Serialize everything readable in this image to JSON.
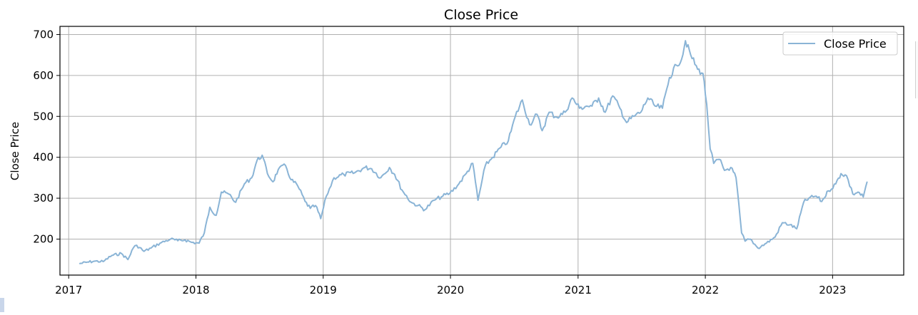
{
  "chart_data": {
    "type": "line",
    "title": "Close Price",
    "xlabel": "",
    "ylabel": "Close Price",
    "x_ticks": [
      "2017",
      "2018",
      "2019",
      "2020",
      "2021",
      "2022",
      "2023"
    ],
    "y_ticks": [
      200,
      300,
      400,
      500,
      600,
      700
    ],
    "xlim": [
      "2016-12-07",
      "2023-07-24"
    ],
    "ylim": [
      112,
      720
    ],
    "grid": true,
    "legend_position": "top-right",
    "series_color": "#8ab4d6",
    "series": [
      {
        "name": "Close Price",
        "x": [
          "2017-02-01",
          "2017-02-20",
          "2017-03-15",
          "2017-04-10",
          "2017-05-05",
          "2017-06-01",
          "2017-06-20",
          "2017-07-05",
          "2017-07-15",
          "2017-08-05",
          "2017-08-25",
          "2017-09-20",
          "2017-10-20",
          "2017-11-10",
          "2017-12-01",
          "2017-12-20",
          "2018-01-10",
          "2018-01-25",
          "2018-02-10",
          "2018-02-28",
          "2018-03-15",
          "2018-04-05",
          "2018-04-25",
          "2018-05-20",
          "2018-06-10",
          "2018-06-25",
          "2018-07-10",
          "2018-07-25",
          "2018-08-10",
          "2018-08-25",
          "2018-09-15",
          "2018-10-01",
          "2018-10-20",
          "2018-11-10",
          "2018-11-25",
          "2018-12-10",
          "2018-12-25",
          "2019-01-10",
          "2019-02-01",
          "2019-03-01",
          "2019-04-01",
          "2019-05-01",
          "2019-05-20",
          "2019-06-15",
          "2019-07-10",
          "2019-07-25",
          "2019-08-15",
          "2019-09-10",
          "2019-09-30",
          "2019-10-20",
          "2019-11-15",
          "2019-12-10",
          "2019-12-30",
          "2020-01-25",
          "2020-02-15",
          "2020-03-05",
          "2020-03-20",
          "2020-04-10",
          "2020-05-01",
          "2020-05-25",
          "2020-06-15",
          "2020-07-05",
          "2020-07-25",
          "2020-08-15",
          "2020-09-05",
          "2020-09-20",
          "2020-10-10",
          "2020-11-01",
          "2020-11-25",
          "2020-12-15",
          "2021-01-05",
          "2021-01-25",
          "2021-02-10",
          "2021-03-01",
          "2021-03-20",
          "2021-04-10",
          "2021-05-01",
          "2021-05-20",
          "2021-06-10",
          "2021-06-30",
          "2021-07-20",
          "2021-08-10",
          "2021-08-31",
          "2021-09-20",
          "2021-10-10",
          "2021-10-25",
          "2021-11-05",
          "2021-11-20",
          "2021-12-10",
          "2021-12-25",
          "2022-01-05",
          "2022-01-15",
          "2022-01-25",
          "2022-02-10",
          "2022-02-25",
          "2022-03-15",
          "2022-03-30",
          "2022-04-15",
          "2022-04-25",
          "2022-05-10",
          "2022-06-01",
          "2022-06-25",
          "2022-07-20",
          "2022-08-10",
          "2022-09-01",
          "2022-09-20",
          "2022-10-10",
          "2022-10-25",
          "2022-11-15",
          "2022-12-01",
          "2022-12-20",
          "2023-01-10",
          "2023-01-25",
          "2023-02-10",
          "2023-02-28",
          "2023-03-15",
          "2023-03-30",
          "2023-04-10"
        ],
        "values": [
          140,
          143,
          146,
          145,
          160,
          165,
          150,
          178,
          185,
          170,
          178,
          190,
          200,
          196,
          198,
          192,
          190,
          215,
          278,
          258,
          315,
          310,
          290,
          335,
          350,
          392,
          405,
          360,
          340,
          370,
          380,
          345,
          330,
          292,
          275,
          282,
          250,
          305,
          350,
          358,
          362,
          375,
          372,
          350,
          375,
          358,
          320,
          290,
          282,
          272,
          295,
          305,
          312,
          335,
          360,
          385,
          295,
          380,
          400,
          425,
          440,
          500,
          540,
          480,
          505,
          465,
          510,
          498,
          510,
          545,
          520,
          525,
          525,
          545,
          510,
          550,
          520,
          485,
          500,
          510,
          545,
          525,
          520,
          595,
          625,
          640,
          685,
          650,
          615,
          605,
          530,
          420,
          385,
          395,
          368,
          375,
          350,
          215,
          195,
          200,
          178,
          190,
          205,
          240,
          235,
          225,
          290,
          300,
          305,
          292,
          318,
          335,
          360,
          355,
          310,
          315,
          303,
          340
        ]
      }
    ]
  }
}
